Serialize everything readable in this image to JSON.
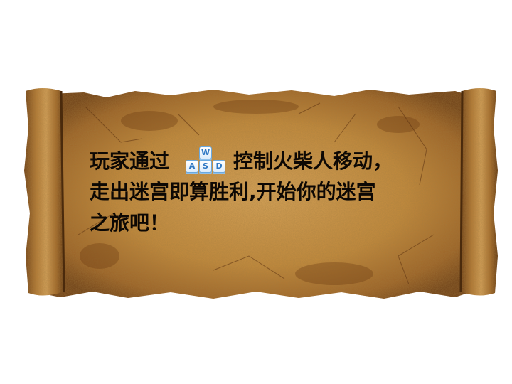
{
  "instructions": {
    "line1_prefix": "玩家通过",
    "line1_suffix": "控制火柴人移动，",
    "line2": "走出迷宫即算胜利,开始你的迷宫",
    "line3": "之旅吧！"
  },
  "keys": {
    "w": "W",
    "a": "A",
    "s": "S",
    "d": "D"
  },
  "colors": {
    "parchment": "#c38a3c",
    "parchment_dark": "#7a4a1c",
    "text": "#0d0804",
    "key_blue": "#2f78c4"
  },
  "icons": {
    "keyboard": "wasd-keys-icon"
  }
}
